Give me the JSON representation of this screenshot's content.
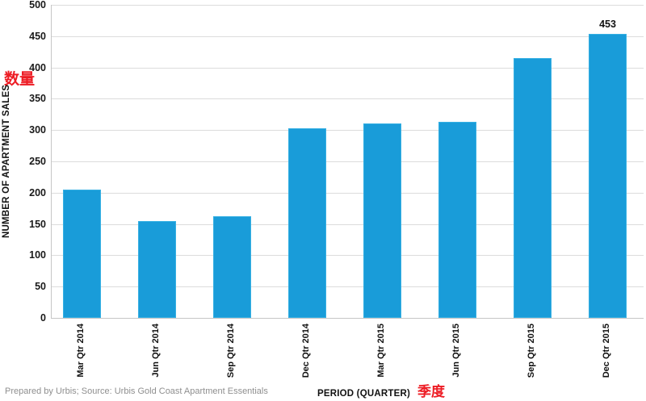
{
  "chart_data": {
    "type": "bar",
    "title": "",
    "categories": [
      "Mar Qtr 2014",
      "Jun Qtr 2014",
      "Sep Qtr 2014",
      "Dec Qtr 2014",
      "Mar Qtr 2015",
      "Jun Qtr 2015",
      "Sep Qtr 2015",
      "Dec Qtr 2015"
    ],
    "values": [
      205,
      155,
      163,
      303,
      310,
      313,
      415,
      453
    ],
    "bar_data_label": {
      "category": "Dec Qtr 2015",
      "text": "453"
    },
    "xlabel": "PERIOD (QUARTER)",
    "xlabel_cjk": "季度",
    "ylabel": "NUMBER OF APARTMENT SALES",
    "ylabel_cjk": "数量",
    "ylim": [
      0,
      500
    ],
    "ytick_step": 50,
    "yticks": [
      0,
      50,
      100,
      150,
      200,
      250,
      300,
      350,
      400,
      450,
      500
    ],
    "grid": true,
    "legend_position": "none",
    "colors": {
      "bar_fill": "#199CD9",
      "bar_edge": "#36B0E3",
      "gridline": "#DCDCDC",
      "axis_line": "#C6C6C6",
      "tick_text": "#1a1a1a",
      "cjk_red": "#ED1C24",
      "footer_text": "#8F8F8F"
    }
  },
  "footer": {
    "source_note": "Prepared by Urbis; Source: Urbis Gold Coast Apartment Essentials"
  }
}
